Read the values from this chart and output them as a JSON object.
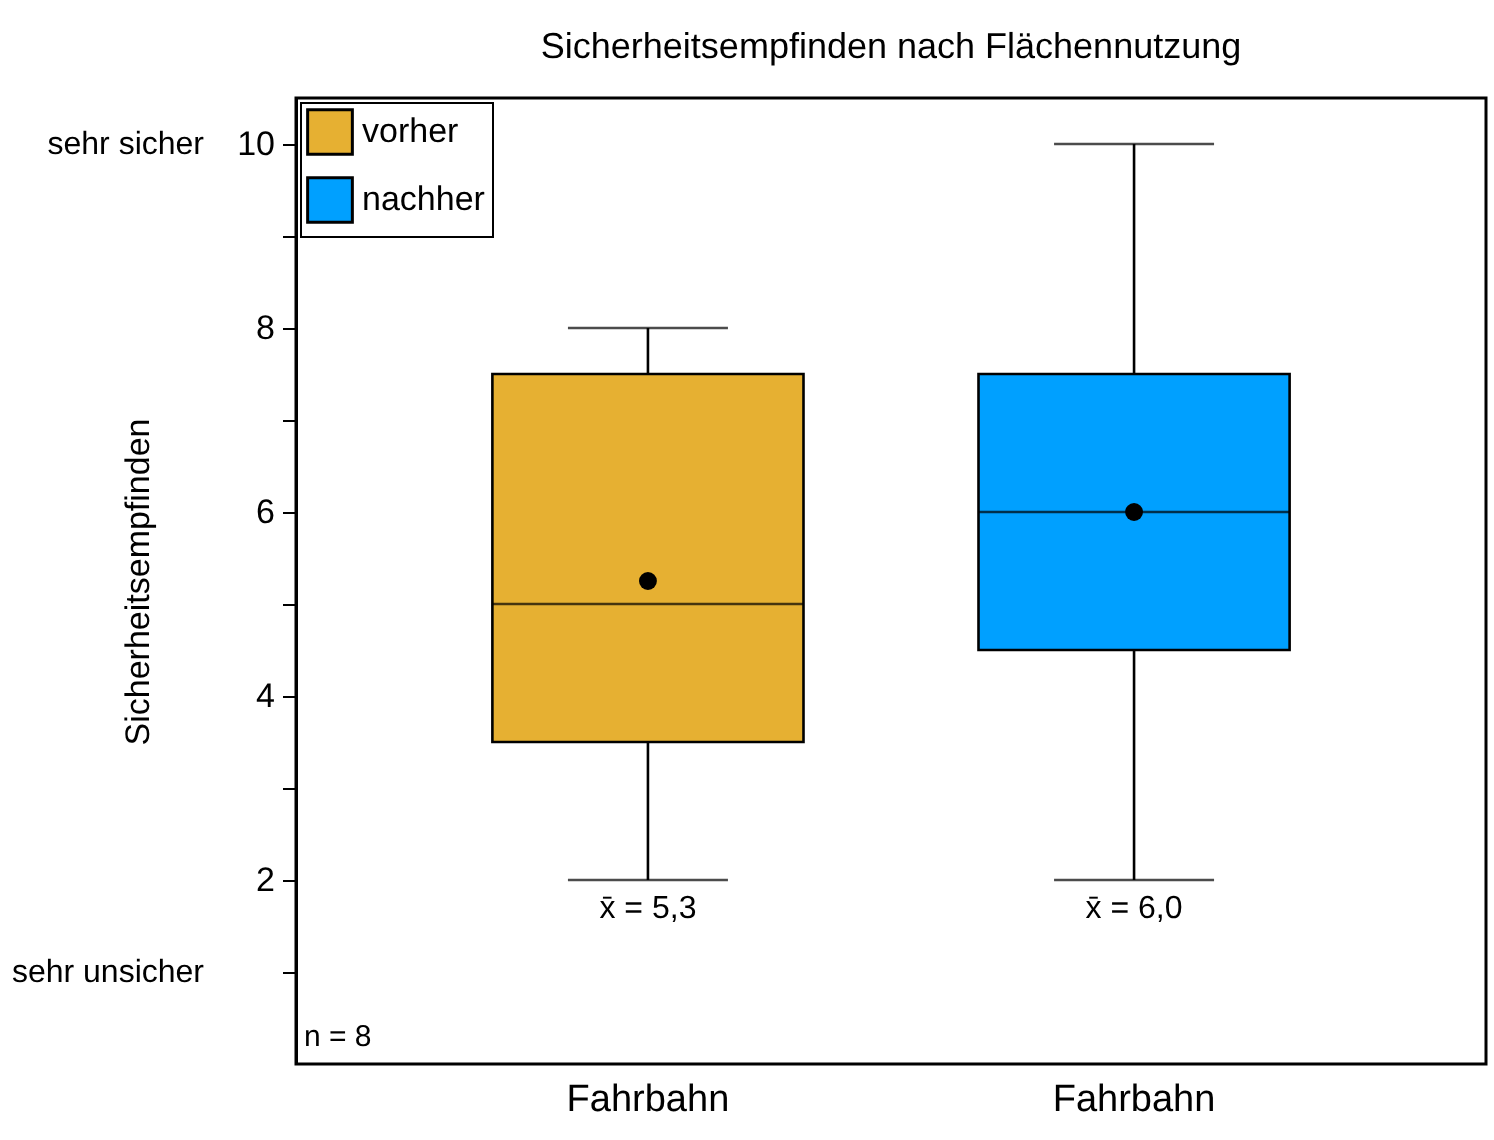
{
  "chart_data": {
    "type": "box",
    "title": "Sicherheitsempfinden nach Flächennutzung",
    "ylabel": "Sicherheitsempfinden",
    "categories": [
      "Fahrbahn",
      "Fahrbahn"
    ],
    "series": [
      {
        "name": "vorher",
        "color": "#e6b032",
        "boxes": [
          {
            "low": 2,
            "q1": 3.5,
            "median": 5,
            "q3": 7.5,
            "high": 8,
            "mean": 5.25
          },
          null
        ]
      },
      {
        "name": "nachher",
        "color": "#00a0ff",
        "boxes": [
          null,
          {
            "low": 2,
            "q1": 4.5,
            "median": 6,
            "q3": 7.5,
            "high": 10,
            "mean": 6
          }
        ]
      }
    ],
    "ylim": [
      0,
      10.5
    ],
    "yticks": [
      {
        "value": 1,
        "label": null
      },
      2,
      {
        "value": 3,
        "label": null
      },
      4,
      {
        "value": 5,
        "label": null
      },
      6,
      {
        "value": 7,
        "label": null
      },
      8,
      {
        "value": 9,
        "label": null
      },
      10
    ],
    "legend": "top left",
    "annotations": [
      "sehr sicher",
      "sehr unsicher",
      "n = 8",
      "x̄ = 5,3",
      "x̄ = 6,0"
    ]
  }
}
